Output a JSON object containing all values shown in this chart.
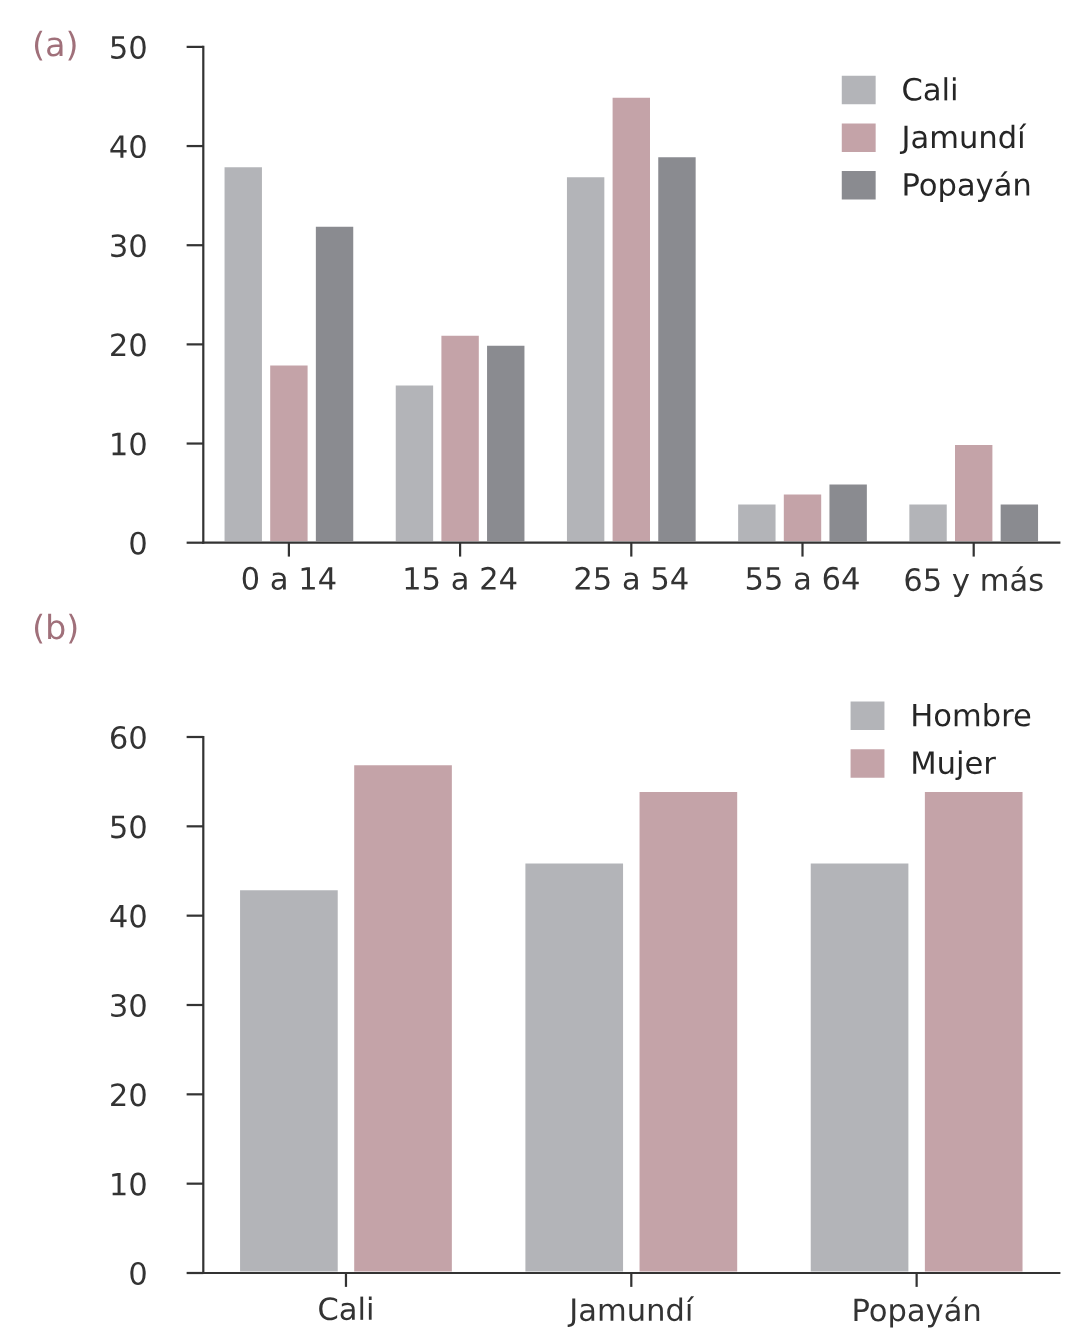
{
  "chart_data": [
    {
      "type": "bar",
      "title": "(a)",
      "categories": [
        "0 a 14",
        "15 a 24",
        "25 a 54",
        "55 a 64",
        "65 y más"
      ],
      "series": [
        {
          "name": "Cali",
          "color": "#b3b4b8",
          "values": [
            38,
            16,
            37,
            4,
            4
          ]
        },
        {
          "name": "Jamundí",
          "color": "#c4a3a8",
          "values": [
            18,
            21,
            45,
            5,
            10
          ]
        },
        {
          "name": "Popayán",
          "color": "#8a8b90",
          "values": [
            32,
            20,
            39,
            6,
            4
          ]
        }
      ],
      "ylim": [
        0,
        50
      ],
      "yticks": [
        0,
        10,
        20,
        30,
        40,
        50
      ],
      "grid": false,
      "legend": "top right"
    },
    {
      "type": "bar",
      "title": "(b)",
      "categories": [
        "Cali",
        "Jamundí",
        "Popayán"
      ],
      "series": [
        {
          "name": "Hombre",
          "color": "#b3b4b8",
          "values": [
            43,
            46,
            46
          ]
        },
        {
          "name": "Mujer",
          "color": "#c4a3a8",
          "values": [
            57,
            54,
            54
          ]
        }
      ],
      "ylim": [
        0,
        60
      ],
      "yticks": [
        0,
        10,
        20,
        30,
        40,
        50,
        60
      ],
      "grid": false,
      "legend": "top right"
    }
  ]
}
